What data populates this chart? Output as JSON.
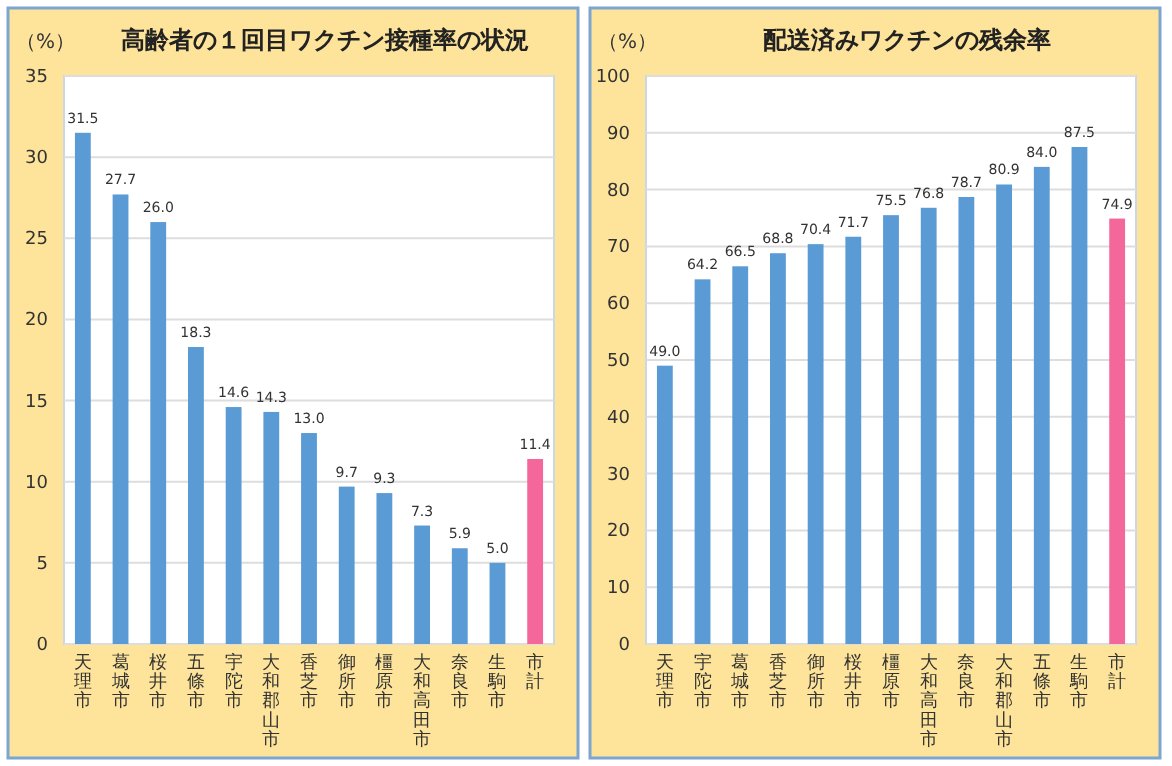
{
  "chart_data": [
    {
      "type": "bar",
      "title": "高齢者の１回目ワクチン接種率の状況",
      "ylabel": "（%）",
      "categories": [
        "天理市",
        "葛城市",
        "桜井市",
        "五條市",
        "宇陀市",
        "大和郡山市",
        "香芝市",
        "御所市",
        "橿原市",
        "大和高田市",
        "奈良市",
        "生駒市",
        "市計"
      ],
      "values": [
        31.5,
        27.7,
        26.0,
        18.3,
        14.6,
        14.3,
        13.0,
        9.7,
        9.3,
        7.3,
        5.9,
        5.0,
        11.4
      ],
      "colors": [
        "#5b9bd5",
        "#5b9bd5",
        "#5b9bd5",
        "#5b9bd5",
        "#5b9bd5",
        "#5b9bd5",
        "#5b9bd5",
        "#5b9bd5",
        "#5b9bd5",
        "#5b9bd5",
        "#5b9bd5",
        "#5b9bd5",
        "#f4679a"
      ],
      "value_labels": [
        "31.5",
        "27.7",
        "26.0",
        "18.3",
        "14.6",
        "14.3",
        "13.0",
        "9.7",
        "9.3",
        "7.3",
        "5.9",
        "5.0",
        "11.4"
      ],
      "ylim": [
        0,
        35
      ],
      "yticks": [
        0,
        5,
        10,
        15,
        20,
        25,
        30,
        35
      ],
      "grid": "y"
    },
    {
      "type": "bar",
      "title": "配送済みワクチンの残余率",
      "ylabel": "（%）",
      "categories": [
        "天理市",
        "宇陀市",
        "葛城市",
        "香芝市",
        "御所市",
        "桜井市",
        "橿原市",
        "大和高田市",
        "奈良市",
        "大和郡山市",
        "五條市",
        "生駒市",
        "市計"
      ],
      "values": [
        49.0,
        64.2,
        66.5,
        68.8,
        70.4,
        71.7,
        75.5,
        76.8,
        78.7,
        80.9,
        84.0,
        87.5,
        74.9
      ],
      "colors": [
        "#5b9bd5",
        "#5b9bd5",
        "#5b9bd5",
        "#5b9bd5",
        "#5b9bd5",
        "#5b9bd5",
        "#5b9bd5",
        "#5b9bd5",
        "#5b9bd5",
        "#5b9bd5",
        "#5b9bd5",
        "#5b9bd5",
        "#f4679a"
      ],
      "value_labels": [
        "49.0",
        "64.2",
        "66.5",
        "68.8",
        "70.4",
        "71.7",
        "75.5",
        "76.8",
        "78.7",
        "80.9",
        "84.0",
        "87.5",
        "74.9"
      ],
      "ylim": [
        0,
        100
      ],
      "yticks": [
        0,
        10,
        20,
        30,
        40,
        50,
        60,
        70,
        80,
        90,
        100
      ],
      "grid": "y"
    }
  ]
}
